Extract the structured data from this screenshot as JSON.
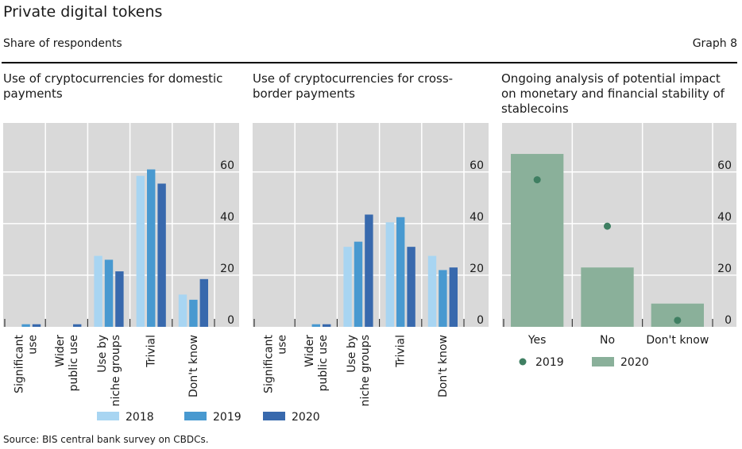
{
  "header": {
    "title": "Private digital tokens",
    "subtitle": "Share of respondents",
    "graph_number": "Graph 8"
  },
  "source": "Source: BIS central bank survey on CBDCs.",
  "colors": {
    "plot_bg": "#d9d9d9",
    "grid": "#ffffff",
    "y2018": "#a8d5f2",
    "y2019": "#4899d0",
    "y2020": "#3869ad",
    "green_bar": "#8ab09a",
    "green_dot": "#3f7f62"
  },
  "chart_data": [
    {
      "type": "bar",
      "title": "Use of cryptocurrencies for domestic payments",
      "title_lines": [
        "Use of cryptocurrencies for domestic",
        "payments"
      ],
      "categories": [
        "Significant use",
        "Wider public use",
        "Use by niche groups",
        "Trivial",
        "Don't know"
      ],
      "category_lines": [
        [
          "Significant",
          "use"
        ],
        [
          "Wider",
          "public use"
        ],
        [
          "Use by",
          "niche groups"
        ],
        [
          "Trivial"
        ],
        [
          "Don't know"
        ]
      ],
      "series": [
        {
          "name": "2018",
          "values": [
            0,
            0,
            27.5,
            58.5,
            12.5
          ]
        },
        {
          "name": "2019",
          "values": [
            1,
            0,
            26,
            61,
            10.5
          ]
        },
        {
          "name": "2020",
          "values": [
            1,
            1,
            21.5,
            55.5,
            18.5
          ]
        }
      ],
      "yticks": [
        0,
        20,
        40,
        60
      ],
      "ylim": [
        0,
        79
      ],
      "y_axis_side": "right",
      "grid": true,
      "xlabel": "",
      "ylabel": ""
    },
    {
      "type": "bar",
      "title": "Use of cryptocurrencies for cross-border payments",
      "title_lines": [
        "Use of cryptocurrencies for cross-",
        "border payments"
      ],
      "categories": [
        "Significant use",
        "Wider public use",
        "Use by niche groups",
        "Trivial",
        "Don't know"
      ],
      "category_lines": [
        [
          "Significant",
          "use"
        ],
        [
          "Wider",
          "public use"
        ],
        [
          "Use by",
          "niche groups"
        ],
        [
          "Trivial"
        ],
        [
          "Don't know"
        ]
      ],
      "series": [
        {
          "name": "2018",
          "values": [
            0,
            0,
            31,
            40.5,
            27.5
          ]
        },
        {
          "name": "2019",
          "values": [
            0,
            1,
            33,
            42.5,
            22
          ]
        },
        {
          "name": "2020",
          "values": [
            0,
            1,
            43.5,
            31,
            23
          ]
        }
      ],
      "yticks": [
        0,
        20,
        40,
        60
      ],
      "ylim": [
        0,
        79
      ],
      "y_axis_side": "right",
      "grid": true,
      "xlabel": "",
      "ylabel": ""
    },
    {
      "type": "bar",
      "title": "Ongoing analysis of potential impact on monetary and financial stability of stablecoins",
      "title_lines": [
        "Ongoing analysis of potential impact",
        "on monetary and financial stability of",
        "stablecoins"
      ],
      "categories": [
        "Yes",
        "No",
        "Don't know"
      ],
      "series": [
        {
          "name": "2019",
          "style": "dot",
          "values": [
            57,
            39,
            2.5
          ]
        },
        {
          "name": "2020",
          "style": "bar",
          "values": [
            67,
            23,
            9
          ]
        }
      ],
      "yticks": [
        0,
        20,
        40,
        60
      ],
      "ylim": [
        0,
        79
      ],
      "y_axis_side": "right",
      "grid": true,
      "xlabel": "",
      "ylabel": ""
    }
  ],
  "legends": {
    "bars_shared": [
      "2018",
      "2019",
      "2020"
    ],
    "stablecoins": [
      "2019",
      "2020"
    ]
  }
}
